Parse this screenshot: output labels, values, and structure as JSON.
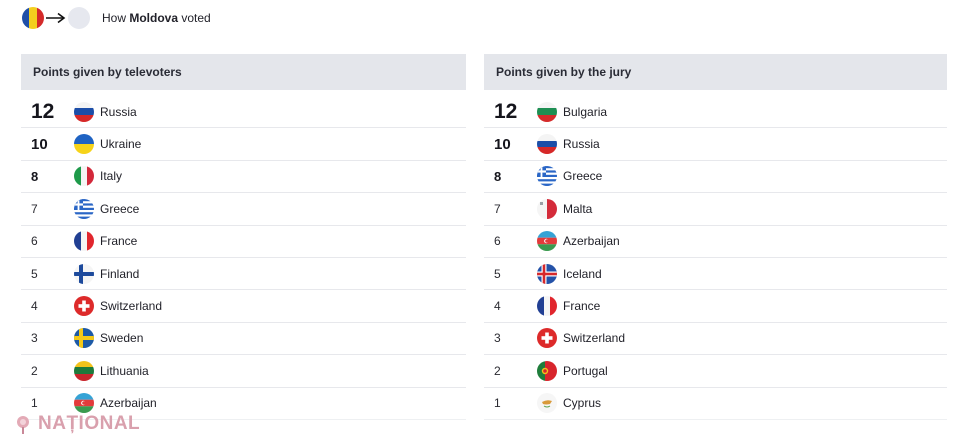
{
  "header": {
    "prefix": "How ",
    "country": "Moldova",
    "suffix": " voted"
  },
  "televoters": {
    "title": "Points given by televoters",
    "rows": [
      {
        "points": "12",
        "country": "Russia",
        "flag": "russia"
      },
      {
        "points": "10",
        "country": "Ukraine",
        "flag": "ukraine"
      },
      {
        "points": "8",
        "country": "Italy",
        "flag": "italy"
      },
      {
        "points": "7",
        "country": "Greece",
        "flag": "greece"
      },
      {
        "points": "6",
        "country": "France",
        "flag": "france"
      },
      {
        "points": "5",
        "country": "Finland",
        "flag": "finland"
      },
      {
        "points": "4",
        "country": "Switzerland",
        "flag": "switzerland"
      },
      {
        "points": "3",
        "country": "Sweden",
        "flag": "sweden"
      },
      {
        "points": "2",
        "country": "Lithuania",
        "flag": "lithuania"
      },
      {
        "points": "1",
        "country": "Azerbaijan",
        "flag": "azerbaijan"
      }
    ]
  },
  "jury": {
    "title": "Points given by the jury",
    "rows": [
      {
        "points": "12",
        "country": "Bulgaria",
        "flag": "bulgaria"
      },
      {
        "points": "10",
        "country": "Russia",
        "flag": "russia"
      },
      {
        "points": "8",
        "country": "Greece",
        "flag": "greece"
      },
      {
        "points": "7",
        "country": "Malta",
        "flag": "malta"
      },
      {
        "points": "6",
        "country": "Azerbaijan",
        "flag": "azerbaijan"
      },
      {
        "points": "5",
        "country": "Iceland",
        "flag": "iceland"
      },
      {
        "points": "4",
        "country": "France",
        "flag": "france"
      },
      {
        "points": "3",
        "country": "Switzerland",
        "flag": "switzerland"
      },
      {
        "points": "2",
        "country": "Portugal",
        "flag": "portugal"
      },
      {
        "points": "1",
        "country": "Cyprus",
        "flag": "cyprus"
      }
    ]
  },
  "watermark": {
    "text": "NAȚIONAL"
  }
}
